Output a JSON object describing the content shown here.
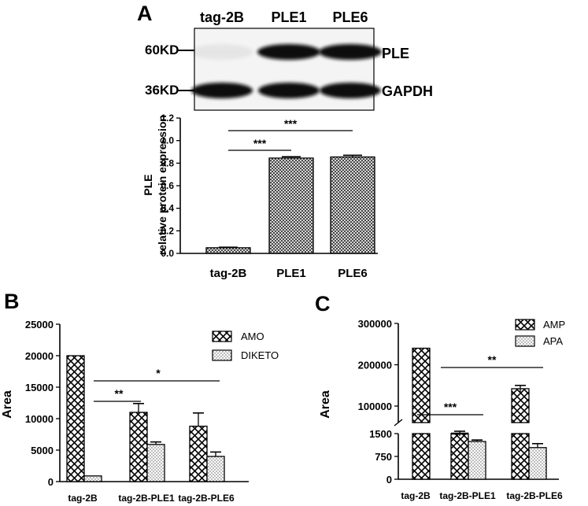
{
  "panels": {
    "A_label": "A",
    "B_label": "B",
    "C_label": "C"
  },
  "colors": {
    "bar_fill": "#ffffff",
    "ink": "#000000",
    "blot_background": "#f4f4f4",
    "band": "#111111"
  },
  "blot": {
    "lanes": [
      "tag-2B",
      "PLE1",
      "PLE6"
    ],
    "marker_labels": [
      "60KD",
      "36KD"
    ],
    "band_labels": [
      "PLE",
      "GAPDH"
    ],
    "ple_band_intensity": [
      0.05,
      1.0,
      1.0
    ],
    "gapdh_band_intensity": [
      1.0,
      1.0,
      1.0
    ]
  },
  "chart_data": [
    {
      "id": "A",
      "type": "bar",
      "categories": [
        "tag-2B",
        "PLE1",
        "PLE6"
      ],
      "values": [
        0.05,
        0.845,
        0.855
      ],
      "errors": [
        0.005,
        0.012,
        0.015
      ],
      "ylabel": "PLE",
      "ylabel2": "relative protein expression",
      "ylim": [
        0,
        1.2
      ],
      "yticks": [
        0.0,
        0.2,
        0.4,
        0.6,
        0.8,
        1.0,
        1.2
      ],
      "ytick_labels": [
        "0.0",
        "0.2",
        "0.4",
        "0.6",
        "0.8",
        "1.0",
        "1.2"
      ],
      "pattern": "crosshatch-fine",
      "significance": [
        {
          "from": 0,
          "to": 1,
          "label": "***"
        },
        {
          "from": 0,
          "to": 2,
          "label": "***"
        }
      ]
    },
    {
      "id": "B",
      "type": "bar",
      "categories": [
        "tag-2B",
        "tag-2B-PLE1",
        "tag-2B-PLE6"
      ],
      "series": [
        {
          "name": "AMO",
          "values": [
            20000,
            11000,
            8800
          ],
          "errors": [
            0,
            1400,
            2100
          ],
          "pattern": "crosshatch"
        },
        {
          "name": "DIKETO",
          "values": [
            900,
            5900,
            4000
          ],
          "errors": [
            0,
            400,
            700
          ],
          "pattern": "dots"
        }
      ],
      "ylabel": "Area",
      "ylim": [
        0,
        25000
      ],
      "yticks": [
        0,
        5000,
        10000,
        15000,
        20000,
        25000
      ],
      "ytick_labels": [
        "0",
        "5000",
        "10000",
        "15000",
        "20000",
        "25000"
      ],
      "legend": "top-right",
      "significance": [
        {
          "from": 0,
          "to": 1,
          "label": "**"
        },
        {
          "from": 0,
          "to": 2,
          "label": "*"
        }
      ]
    },
    {
      "id": "C",
      "type": "bar",
      "categories": [
        "tag-2B",
        "tag-2B-PLE1",
        "tag-2B-PLE6"
      ],
      "series": [
        {
          "name": "AMP",
          "values": [
            240000,
            1700,
            142000
          ],
          "errors": [
            0,
            40,
            8000
          ],
          "pattern": "crosshatch"
        },
        {
          "name": "APA",
          "values": [
            0,
            1240,
            1040
          ],
          "errors": [
            0,
            50,
            130
          ],
          "pattern": "dots"
        }
      ],
      "ylabel": "Area",
      "broken_axis": true,
      "ylim_lower": [
        0,
        1500
      ],
      "ylim_upper": [
        0,
        300000
      ],
      "yticks_lower": [
        0,
        750,
        1500
      ],
      "ytick_labels_lower": [
        "0",
        "750",
        "1500"
      ],
      "yticks_upper": [
        100000,
        200000,
        300000
      ],
      "ytick_labels_upper": [
        "100000",
        "200000",
        "300000"
      ],
      "legend": "top-right",
      "significance": [
        {
          "from": 0,
          "to": 1,
          "label": "***"
        },
        {
          "from": 0,
          "to": 2,
          "label": "**"
        }
      ]
    }
  ]
}
